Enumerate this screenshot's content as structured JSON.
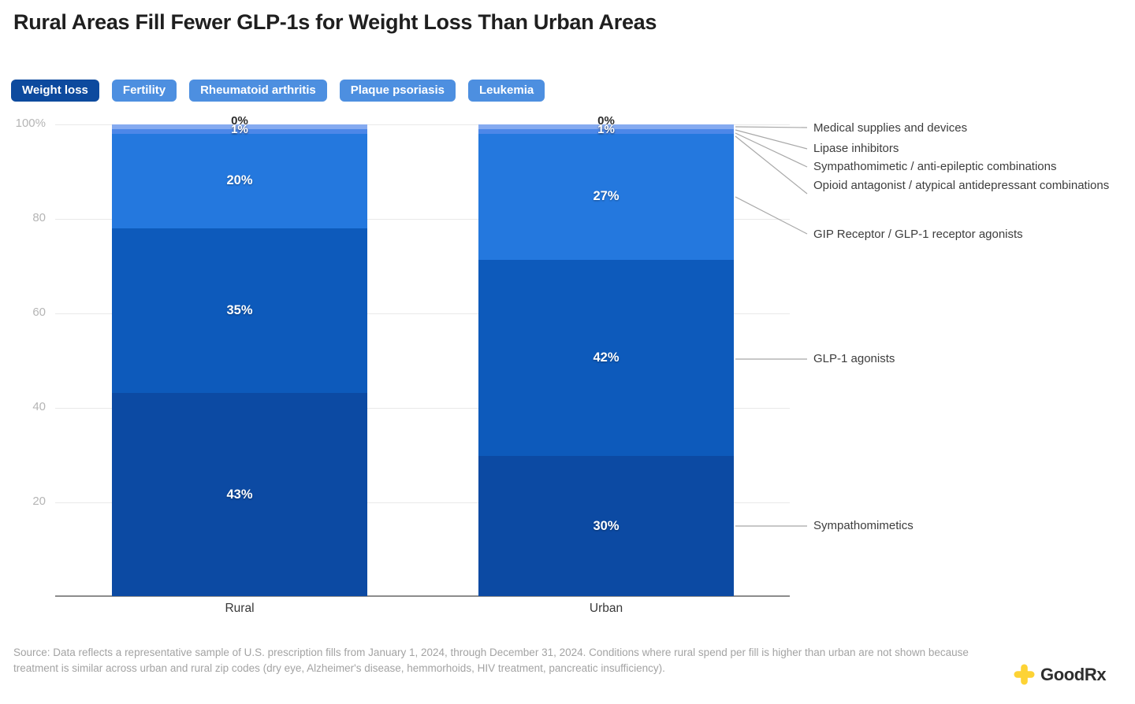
{
  "title": "Rural Areas Fill Fewer GLP-1s for Weight Loss Than Urban Areas",
  "tabs": [
    {
      "label": "Weight loss",
      "selected": true
    },
    {
      "label": "Fertility",
      "selected": false
    },
    {
      "label": "Rheumatoid arthritis",
      "selected": false
    },
    {
      "label": "Plaque psoriasis",
      "selected": false
    },
    {
      "label": "Leukemia",
      "selected": false
    }
  ],
  "colors": {
    "tab_selected": "#0d4a9e",
    "tab_unselected": "#4d8fe0",
    "gridline": "#e9e9e9",
    "baseline": "#8c8c8c",
    "connector": "#a8a8a8",
    "logo_yellow": "#fdd335"
  },
  "chart_data": {
    "type": "bar",
    "subtype": "stacked-percent-column",
    "categories": [
      "Rural",
      "Urban"
    ],
    "y_ticks": [
      "100%",
      "80",
      "60",
      "40",
      "20"
    ],
    "ylim": [
      0,
      100
    ],
    "grid": true,
    "top_labels": [
      "0%",
      "1%"
    ],
    "series": [
      {
        "key": "medical-supplies",
        "name": "Medical supplies and devices",
        "color": "#b9d2f8",
        "values": [
          0,
          0
        ],
        "display": [
          "0%",
          "0%"
        ]
      },
      {
        "key": "lipase-inhibitors",
        "name": "Lipase inhibitors",
        "color": "#85aaf0",
        "values": [
          1,
          1
        ],
        "display": [
          "1%",
          "1%"
        ]
      },
      {
        "key": "sympathomimetic-anti-epileptic",
        "name": "Sympathomimetic / anti-epileptic combinations",
        "color": "#6b9aed",
        "values": [
          0,
          0
        ],
        "display": [
          "0%",
          "0%"
        ]
      },
      {
        "key": "opioid-antagonist-combos",
        "name": "Opioid antagonist / atypical antidepressant combinations",
        "color": "#4c87e8",
        "values": [
          1,
          1
        ],
        "display": [
          "1%",
          "1%"
        ]
      },
      {
        "key": "gip-glp1-agonists",
        "name": "GIP Receptor / GLP-1 receptor agonists",
        "color": "#2478de",
        "values": [
          20,
          27
        ],
        "display": [
          "20%",
          "27%"
        ]
      },
      {
        "key": "glp1-agonists",
        "name": "GLP-1 agonists",
        "color": "#0d5abb",
        "values": [
          35,
          42
        ],
        "display": [
          "35%",
          "42%"
        ]
      },
      {
        "key": "sympathomimetics",
        "name": "Sympathomimetics",
        "color": "#0c4aa3",
        "values": [
          43,
          30
        ],
        "display": [
          "43%",
          "30%"
        ]
      }
    ],
    "annotations": [
      "Medical supplies and devices",
      "Lipase inhibitors",
      "Sympathomimetic / anti-epileptic combinations",
      "Opioid antagonist / atypical antidepressant combinations",
      "GIP Receptor / GLP-1 receptor agonists",
      "GLP-1 agonists",
      "Sympathomimetics"
    ]
  },
  "source": "Source: Data reflects a representative sample of U.S. prescription fills from January 1, 2024, through December 31, 2024. Conditions where rural spend per fill is higher than urban are not shown because treatment is similar across urban and rural zip codes (dry eye, Alzheimer's disease, hemmorhoids, HIV treatment, pancreatic insufficiency).",
  "logo": {
    "text": "GoodRx"
  }
}
